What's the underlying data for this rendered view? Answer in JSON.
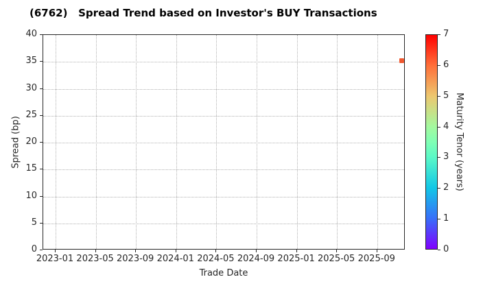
{
  "chart_data": {
    "type": "scatter",
    "title": "(6762)   Spread Trend based on Investor's BUY Transactions",
    "xlabel": "Trade Date",
    "ylabel": "Spread (bp)",
    "ylim": [
      0,
      40
    ],
    "y_ticks": [
      0,
      5,
      10,
      15,
      20,
      25,
      30,
      35,
      40
    ],
    "x_tick_labels": [
      "2023-01",
      "2023-05",
      "2023-09",
      "2024-01",
      "2024-05",
      "2024-09",
      "2025-01",
      "2025-05",
      "2025-09"
    ],
    "x_tick_interval_months": 4,
    "grid": "dotted",
    "legend": "none",
    "points": [
      {
        "trade_date": "2025-11",
        "spread_bp": 35.1,
        "maturity_years": 6.2
      }
    ],
    "colorbar": {
      "label": "Maturity Tenor (years)",
      "min": 0,
      "max": 7,
      "ticks": [
        0,
        1,
        2,
        3,
        4,
        5,
        6,
        7
      ],
      "colormap": "rainbow",
      "stops": [
        {
          "v": 0,
          "color": "#8000ff"
        },
        {
          "v": 1,
          "color": "#376ff9"
        },
        {
          "v": 2,
          "color": "#12c7e6"
        },
        {
          "v": 3,
          "color": "#5bf9c7"
        },
        {
          "v": 3.5,
          "color": "#80ffb4"
        },
        {
          "v": 4,
          "color": "#a4f99f"
        },
        {
          "v": 5,
          "color": "#edc76f"
        },
        {
          "v": 6,
          "color": "#ff6f39"
        },
        {
          "v": 7,
          "color": "#ff0000"
        }
      ]
    },
    "colors": {
      "marker": "#f0582f",
      "text": "#262626",
      "axis": "#262626",
      "grid": "#b0b0b0",
      "background": "#ffffff"
    }
  }
}
